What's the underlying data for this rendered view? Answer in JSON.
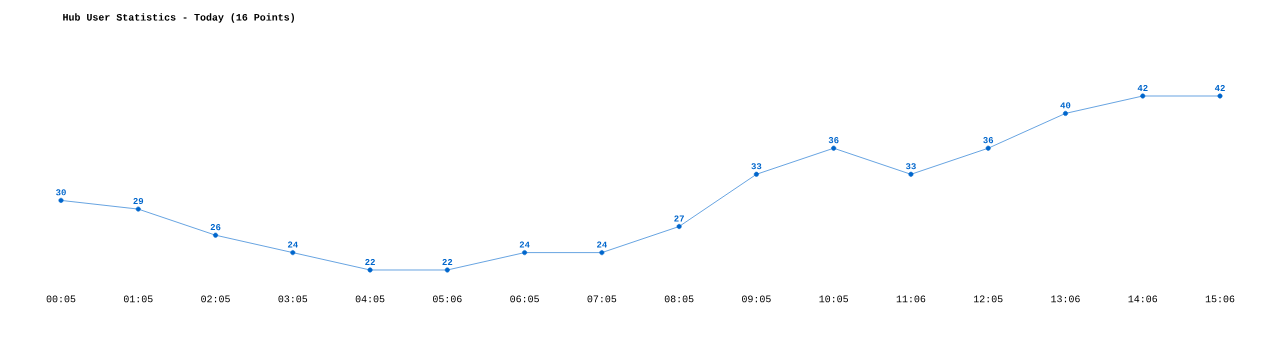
{
  "chart_data": {
    "type": "line",
    "title": "Hub User Statistics - Today (16 Points)",
    "categories": [
      "00:05",
      "01:05",
      "02:05",
      "03:05",
      "04:05",
      "05:06",
      "06:05",
      "07:05",
      "08:05",
      "09:05",
      "10:05",
      "11:06",
      "12:05",
      "13:06",
      "14:06",
      "15:06"
    ],
    "values": [
      30,
      29,
      26,
      24,
      22,
      22,
      24,
      24,
      27,
      33,
      36,
      33,
      36,
      40,
      42,
      42
    ],
    "color": "#0066cc",
    "marker": "circle",
    "data_labels": true
  }
}
